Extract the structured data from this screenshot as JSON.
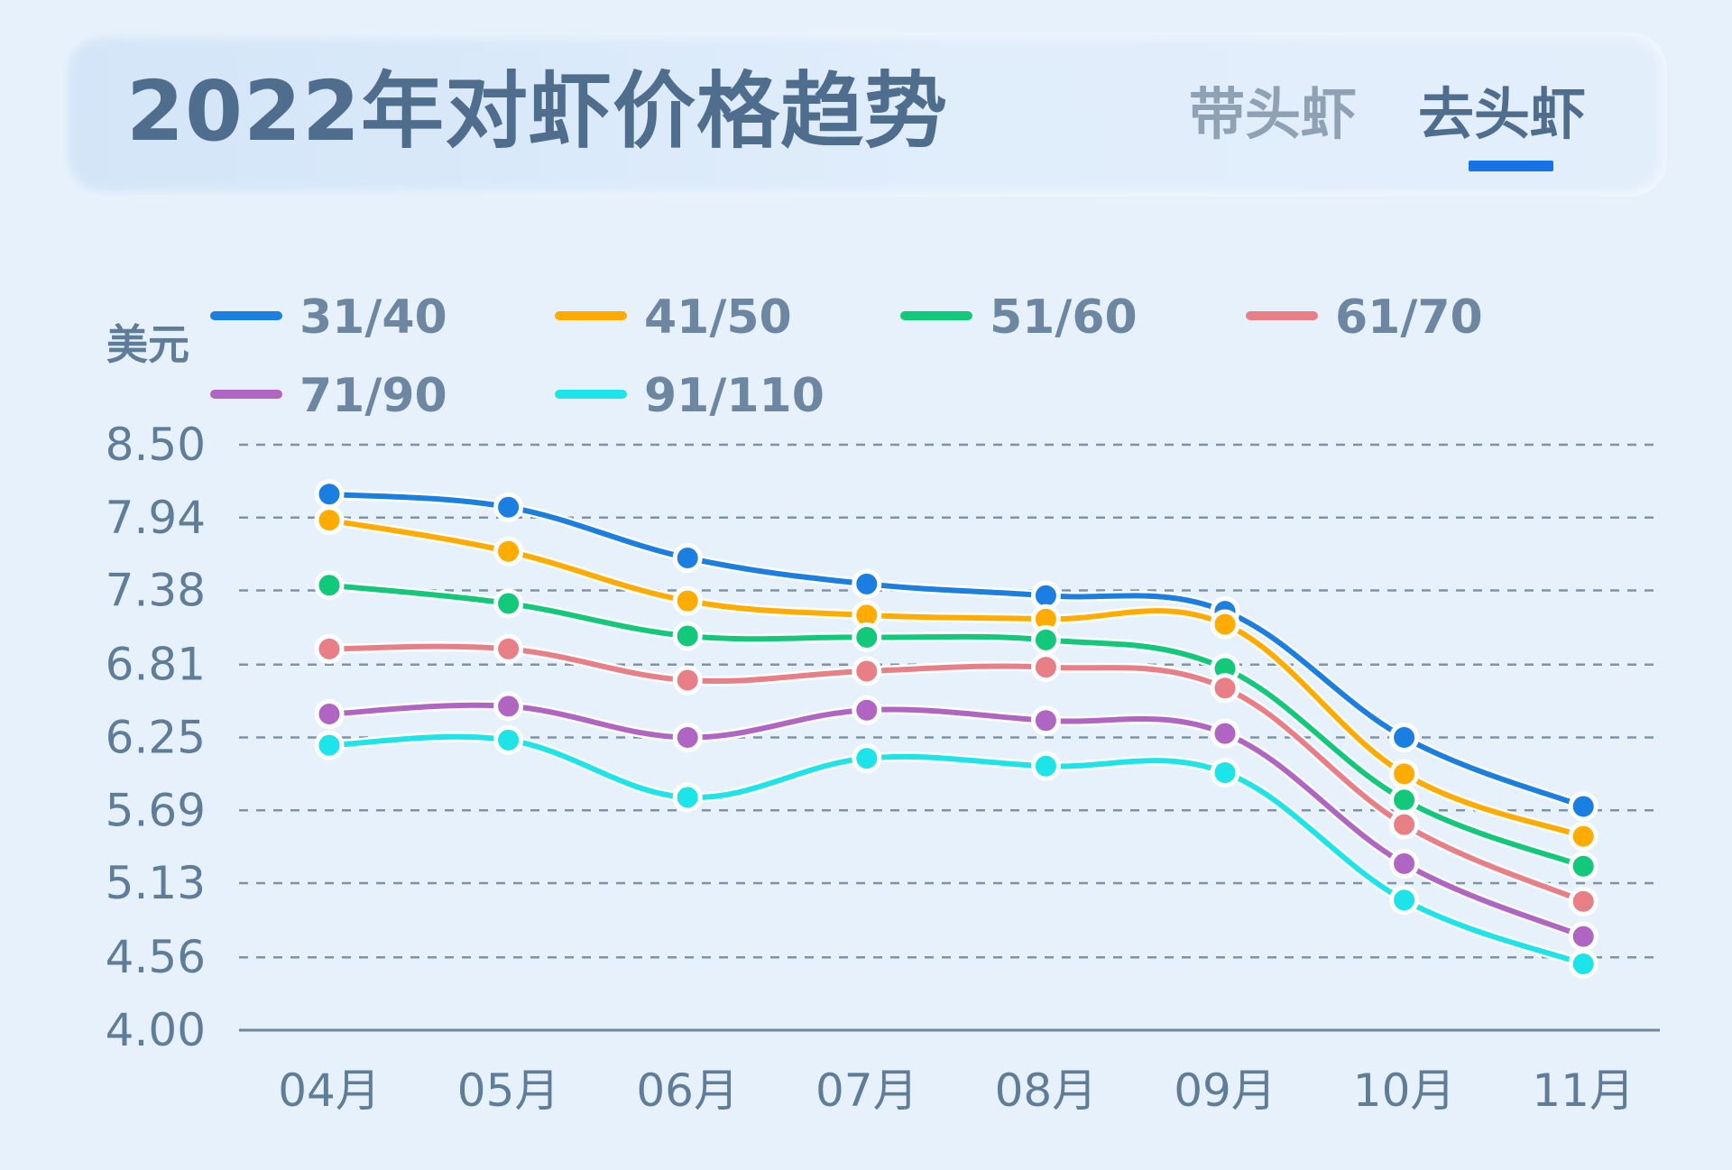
{
  "header": {
    "title": "2022年对虾价格趋势",
    "tabs": [
      {
        "label": "带头虾",
        "active": false
      },
      {
        "label": "去头虾",
        "active": true
      }
    ],
    "accent_color": "#1673e6"
  },
  "chart_data": {
    "type": "line",
    "title": "2022年对虾价格趋势",
    "ylabel": "美元",
    "xlabel": "",
    "categories": [
      "04月",
      "05月",
      "06月",
      "07月",
      "08月",
      "09月",
      "10月",
      "11月"
    ],
    "ylim": [
      4.0,
      8.5
    ],
    "yticks": [
      "8.50",
      "7.94",
      "7.38",
      "6.81",
      "6.25",
      "5.69",
      "5.13",
      "4.56",
      "4.00"
    ],
    "grid": "horizontal dashed",
    "legend_position": "top",
    "series": [
      {
        "name": "31/40",
        "color": "#1a7fe0",
        "values": [
          8.12,
          8.02,
          7.63,
          7.43,
          7.34,
          7.22,
          6.25,
          5.72
        ]
      },
      {
        "name": "41/50",
        "color": "#ffab00",
        "values": [
          7.92,
          7.68,
          7.3,
          7.19,
          7.16,
          7.12,
          5.97,
          5.49
        ]
      },
      {
        "name": "51/60",
        "color": "#12c87a",
        "values": [
          7.42,
          7.28,
          7.03,
          7.02,
          7.0,
          6.78,
          5.77,
          5.26
        ]
      },
      {
        "name": "61/70",
        "color": "#e87f87",
        "values": [
          6.93,
          6.93,
          6.69,
          6.76,
          6.79,
          6.63,
          5.58,
          4.99
        ]
      },
      {
        "name": "71/90",
        "color": "#b065c3",
        "values": [
          6.43,
          6.49,
          6.25,
          6.46,
          6.38,
          6.28,
          5.28,
          4.72
        ]
      },
      {
        "name": "91/110",
        "color": "#1de4e8",
        "values": [
          6.19,
          6.23,
          5.79,
          6.09,
          6.03,
          5.98,
          5.0,
          4.51
        ]
      }
    ]
  }
}
